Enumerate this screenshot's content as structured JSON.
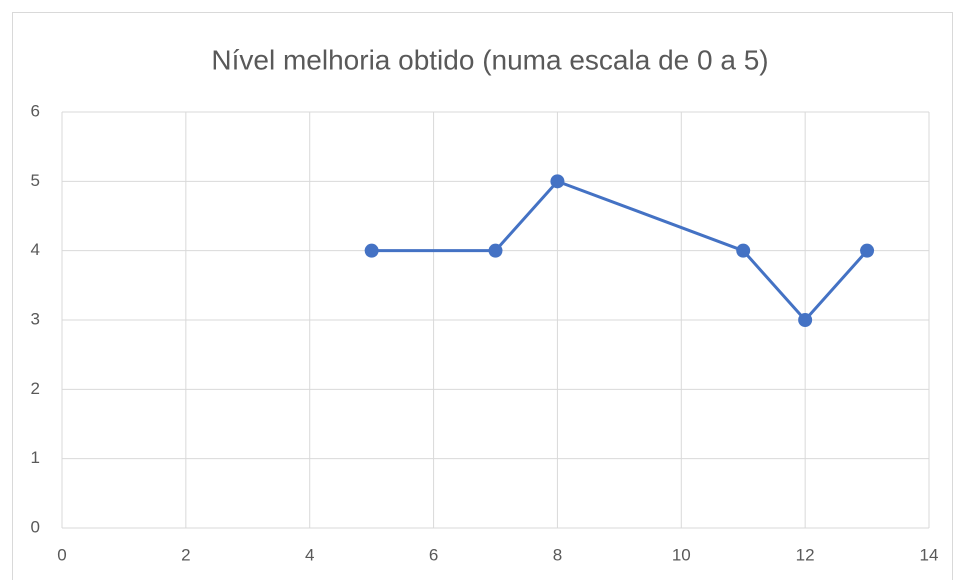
{
  "chart_data": {
    "type": "line",
    "title": "Nível melhoria obtido (numa escala de 0 a 5)",
    "x": [
      5,
      7,
      8,
      11,
      12,
      13
    ],
    "series": [
      {
        "name": null,
        "color": "#4472c4",
        "values": [
          4,
          4,
          5,
          4,
          3,
          4
        ]
      }
    ],
    "xlim": [
      0,
      14
    ],
    "xticks": [
      0,
      2,
      4,
      6,
      8,
      10,
      12,
      14
    ],
    "ylim": [
      0,
      6
    ],
    "yticks": [
      0,
      1,
      2,
      3,
      4,
      5,
      6
    ],
    "grid": true
  }
}
